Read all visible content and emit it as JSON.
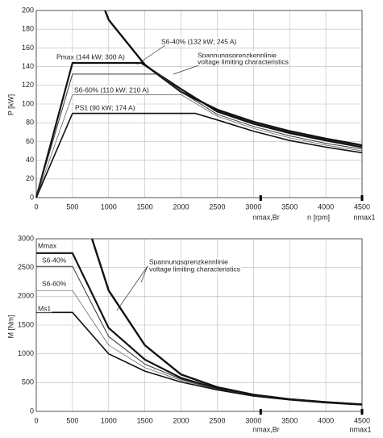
{
  "chart_data": [
    {
      "type": "line",
      "y_label": "P [kW]",
      "x_label": "n [rpm]",
      "x_marker_labels": [
        "nmax,Br",
        "nmax1"
      ],
      "x_markers": [
        3100,
        4500
      ],
      "xlim": [
        0,
        4500
      ],
      "ylim": [
        0,
        200
      ],
      "xticks": [
        0,
        500,
        1000,
        1500,
        2000,
        2500,
        3000,
        3500,
        4000,
        4500
      ],
      "yticks": [
        0,
        20,
        40,
        60,
        80,
        100,
        120,
        140,
        160,
        180,
        200
      ],
      "grid": true,
      "annotations": [
        "Pmax (144 kW; 300 A)",
        "S6-40% (132 kW; 245 A)",
        "Spannungsgrenzkennlinie",
        "voltage limiting characteristics",
        "S6-60% (110 kW; 210 A)",
        "PS1 (90 kW; 174 A)"
      ],
      "series": [
        {
          "color": "#111",
          "width": 2.4,
          "x": [
            950,
            1000,
            1500,
            2000,
            2500,
            3000,
            3500,
            4000,
            4500
          ],
          "values": [
            200,
            190,
            142,
            113,
            94,
            81,
            71,
            63,
            56
          ]
        },
        {
          "color": "#111",
          "width": 2.2,
          "x": [
            0,
            500,
            1450,
            2000,
            2500,
            3000,
            3500,
            4000,
            4500
          ],
          "values": [
            0,
            144,
            144,
            116,
            92,
            79,
            69,
            61,
            54
          ]
        },
        {
          "color": "#333",
          "width": 1.0,
          "x": [
            0,
            500,
            1700,
            2000,
            2500,
            3000,
            3500,
            4000,
            4500
          ],
          "values": [
            0,
            132,
            132,
            113,
            89,
            76,
            66,
            58,
            52
          ]
        },
        {
          "color": "#555",
          "width": 0.7,
          "x": [
            0,
            500,
            2000,
            2500,
            3000,
            3500,
            4000,
            4500
          ],
          "values": [
            0,
            110,
            110,
            87,
            74,
            64,
            56,
            50
          ]
        },
        {
          "color": "#111",
          "width": 1.6,
          "x": [
            0,
            500,
            2200,
            2500,
            3000,
            3500,
            4000,
            4500
          ],
          "values": [
            0,
            90,
            90,
            83,
            71,
            61,
            54,
            48
          ]
        }
      ]
    },
    {
      "type": "line",
      "y_label": "M [Nm]",
      "x_marker_labels": [
        "nmax,Br",
        "nmax1"
      ],
      "x_markers": [
        3100,
        4500
      ],
      "xlim": [
        0,
        4500
      ],
      "ylim": [
        0,
        3000
      ],
      "xticks": [
        0,
        500,
        1000,
        1500,
        2000,
        2500,
        3000,
        3500,
        4000,
        4500
      ],
      "yticks": [
        0,
        500,
        1000,
        1500,
        2000,
        2500,
        3000
      ],
      "grid": true,
      "annotations": [
        "Mmax",
        "S6-40%",
        "S6-60%",
        "Ms1",
        "Spannungsgrenzkennlinie",
        "voltage limiting characteristics"
      ],
      "series": [
        {
          "color": "#111",
          "width": 2.4,
          "x": [
            770,
            1000,
            1500,
            2000,
            2500,
            3000,
            3500,
            4000,
            4500
          ],
          "values": [
            3000,
            2100,
            1150,
            640,
            420,
            290,
            210,
            160,
            120
          ]
        },
        {
          "color": "#111",
          "width": 2.2,
          "x": [
            0,
            500,
            1000,
            1500,
            2000,
            2500,
            3000,
            3500,
            4000,
            4500
          ],
          "values": [
            2750,
            2750,
            1450,
            900,
            580,
            400,
            280,
            210,
            160,
            120
          ]
        },
        {
          "color": "#333",
          "width": 1.0,
          "x": [
            0,
            500,
            1000,
            1500,
            2000,
            2500,
            3000,
            3500,
            4000,
            4500
          ],
          "values": [
            2520,
            2520,
            1300,
            820,
            560,
            390,
            275,
            205,
            155,
            118
          ]
        },
        {
          "color": "#555",
          "width": 0.7,
          "x": [
            0,
            500,
            1000,
            1500,
            2000,
            2500,
            3000,
            3500,
            4000,
            4500
          ],
          "values": [
            2100,
            2100,
            1150,
            760,
            540,
            385,
            272,
            203,
            153,
            116
          ]
        },
        {
          "color": "#111",
          "width": 1.6,
          "x": [
            0,
            500,
            1000,
            1500,
            2000,
            2500,
            3000,
            3500,
            4000,
            4500
          ],
          "values": [
            1720,
            1720,
            1000,
            700,
            510,
            375,
            268,
            200,
            150,
            114
          ]
        }
      ]
    }
  ]
}
